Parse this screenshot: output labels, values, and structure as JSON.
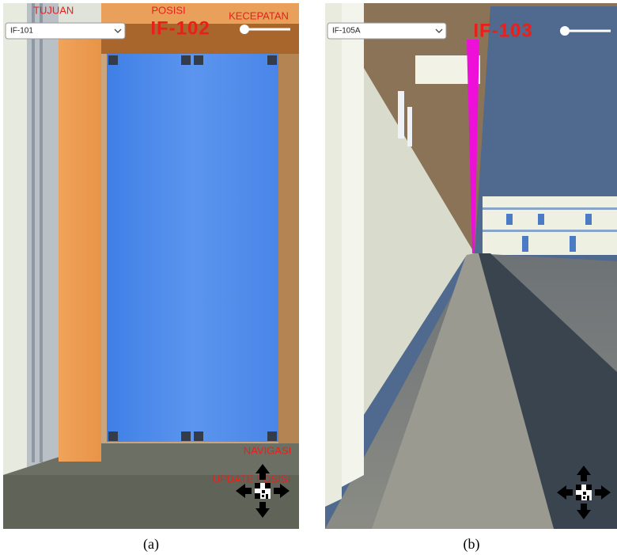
{
  "panel_a": {
    "dropdown": "IF-101",
    "label_tujuan": "TUJUAN",
    "label_posisi": "POSISI",
    "position": "IF-102",
    "label_kecepatan": "KECEPATAN",
    "navigasi": "NAVIGASI",
    "update_posisi": "UPDATE POSISI",
    "caption": "(a)"
  },
  "panel_b": {
    "dropdown": "IF-105A",
    "position": "IF-103",
    "caption": "(b)"
  }
}
